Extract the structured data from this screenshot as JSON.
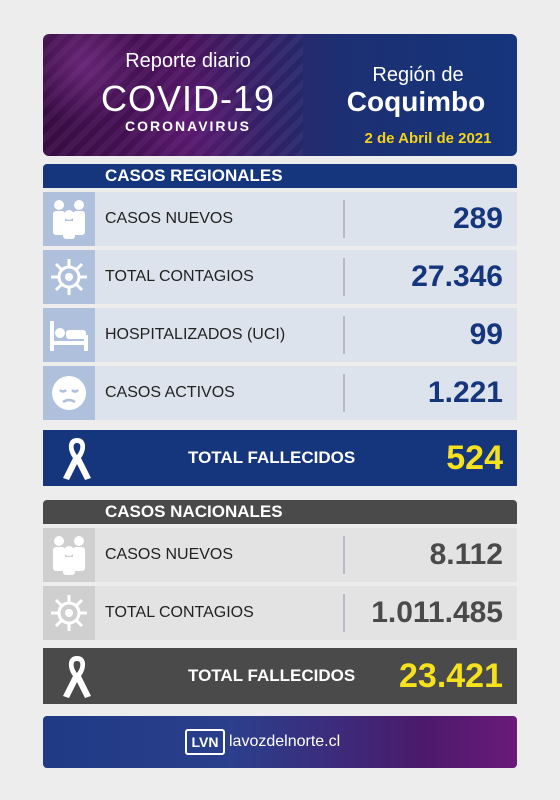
{
  "header": {
    "report": "Reporte diario",
    "covid": "COVID-19",
    "coronavirus": "CORONAVIRUS",
    "region_prefix": "Región de",
    "region": "Coquimbo",
    "date": "2 de Abril de 2021"
  },
  "regional": {
    "title": "CASOS REGIONALES",
    "rows": [
      {
        "label": "CASOS NUEVOS",
        "value": "289",
        "icon": "people-icon"
      },
      {
        "label": "TOTAL CONTAGIOS",
        "value": "27.346",
        "icon": "virus-icon"
      },
      {
        "label": "HOSPITALIZADOS (UCI)",
        "value": "99",
        "icon": "hospital-bed-icon"
      },
      {
        "label": "CASOS ACTIVOS",
        "value": "1.221",
        "icon": "sick-face-icon"
      }
    ],
    "deaths_label": "TOTAL FALLECIDOS",
    "deaths_value": "524"
  },
  "national": {
    "title": "CASOS NACIONALES",
    "rows": [
      {
        "label": "CASOS NUEVOS",
        "value": "8.112",
        "icon": "people-icon"
      },
      {
        "label": "TOTAL CONTAGIOS",
        "value": "1.011.485",
        "icon": "virus-icon"
      }
    ],
    "deaths_label": "TOTAL FALLECIDOS",
    "deaths_value": "23.421"
  },
  "footer": {
    "logo": "LVN",
    "site": "lavozdelnorte.cl"
  },
  "colors": {
    "regional": "#15357c",
    "national": "#4a4a4a",
    "highlight": "#f5e11e"
  }
}
